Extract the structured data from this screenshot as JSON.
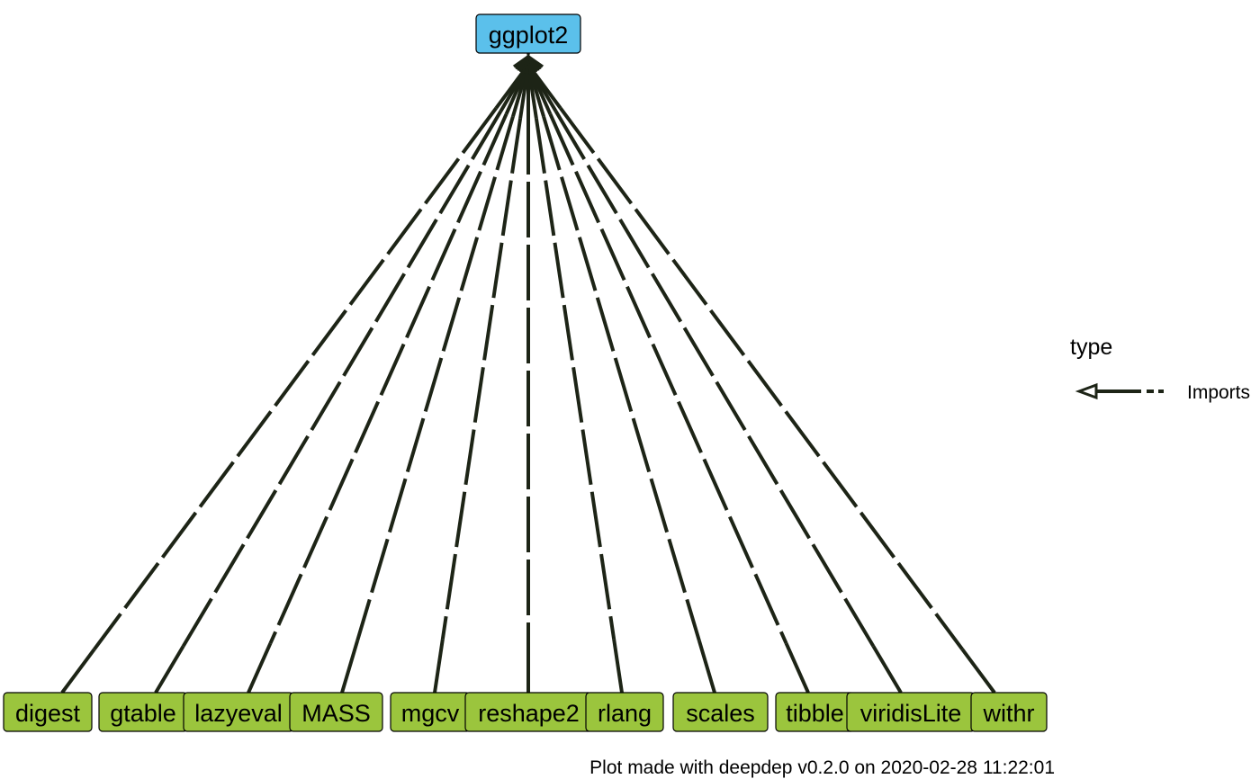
{
  "root": {
    "label": "ggplot2",
    "color": "#5BC0EB"
  },
  "dependencies": [
    {
      "label": "digest"
    },
    {
      "label": "gtable"
    },
    {
      "label": "lazyeval"
    },
    {
      "label": "MASS"
    },
    {
      "label": "mgcv"
    },
    {
      "label": "reshape2"
    },
    {
      "label": "rlang"
    },
    {
      "label": "scales"
    },
    {
      "label": "tibble"
    },
    {
      "label": "viridisLite"
    },
    {
      "label": "withr"
    }
  ],
  "dependency_color": "#9BC53D",
  "edge_color": "#1D2416",
  "legend": {
    "title": "type",
    "items": [
      {
        "label": "Imports"
      }
    ]
  },
  "caption": "Plot made with deepdep v0.2.0 on 2020-02-28 11:22:01"
}
